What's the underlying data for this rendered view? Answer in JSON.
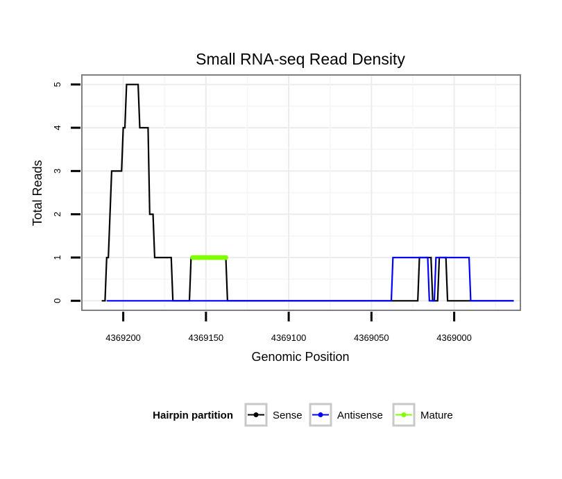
{
  "chart_data": {
    "type": "line",
    "title": "Small RNA-seq Read Density",
    "xlabel": "Genomic Position",
    "ylabel": "Total Reads",
    "xlim": [
      4369225,
      4368960
    ],
    "ylim": [
      -0.22,
      5.22
    ],
    "x_reversed": true,
    "grid": true,
    "x_ticks": [
      4369200,
      4369150,
      4369100,
      4369050,
      4369000
    ],
    "x_tick_labels": [
      "4369200",
      "4369150",
      "4369100",
      "4369050",
      "4369000"
    ],
    "y_ticks": [
      0,
      1,
      2,
      3,
      4,
      5
    ],
    "y_tick_labels": [
      "0",
      "1",
      "2",
      "3",
      "4",
      "5"
    ],
    "legend": {
      "position": "bottom",
      "title": "Hairpin partition",
      "entries": [
        "Sense",
        "Antisense",
        "Mature"
      ]
    },
    "series": [
      {
        "name": "Sense",
        "color": "#000000",
        "style": "line",
        "points": [
          [
            4369213,
            0
          ],
          [
            4369211,
            0
          ],
          [
            4369210,
            1
          ],
          [
            4369209,
            1
          ],
          [
            4369208,
            2
          ],
          [
            4369207,
            3
          ],
          [
            4369201,
            3
          ],
          [
            4369200,
            4
          ],
          [
            4369199,
            4
          ],
          [
            4369198,
            5
          ],
          [
            4369191,
            5
          ],
          [
            4369190,
            4
          ],
          [
            4369185,
            4
          ],
          [
            4369184,
            2
          ],
          [
            4369182,
            2
          ],
          [
            4369181,
            1
          ],
          [
            4369171,
            1
          ],
          [
            4369170,
            0
          ],
          [
            4369160,
            0
          ],
          [
            4369159,
            1
          ],
          [
            4369138,
            1
          ],
          [
            4369137,
            0
          ],
          [
            4369022,
            0
          ],
          [
            4369021,
            1
          ],
          [
            4369014,
            1
          ],
          [
            4369013,
            0
          ],
          [
            4369010,
            0
          ],
          [
            4369009,
            1
          ],
          [
            4369005,
            1
          ],
          [
            4369004,
            0
          ],
          [
            4368964,
            0
          ]
        ]
      },
      {
        "name": "Antisense",
        "color": "#0000ff",
        "style": "line",
        "points": [
          [
            4369210,
            0
          ],
          [
            4369038,
            0
          ],
          [
            4369037,
            1
          ],
          [
            4369016,
            1
          ],
          [
            4369015,
            0
          ],
          [
            4369012,
            0
          ],
          [
            4369011,
            1
          ],
          [
            4368991,
            1
          ],
          [
            4368990,
            0
          ],
          [
            4368964,
            0
          ]
        ]
      },
      {
        "name": "Mature",
        "color": "#7fff00",
        "style": "line+points",
        "points": [
          [
            4369158,
            1
          ],
          [
            4369157,
            1
          ],
          [
            4369156,
            1
          ],
          [
            4369155,
            1
          ],
          [
            4369154,
            1
          ],
          [
            4369153,
            1
          ],
          [
            4369152,
            1
          ],
          [
            4369151,
            1
          ],
          [
            4369150,
            1
          ],
          [
            4369149,
            1
          ],
          [
            4369148,
            1
          ],
          [
            4369147,
            1
          ],
          [
            4369146,
            1
          ],
          [
            4369145,
            1
          ],
          [
            4369144,
            1
          ],
          [
            4369143,
            1
          ],
          [
            4369142,
            1
          ],
          [
            4369141,
            1
          ],
          [
            4369140,
            1
          ],
          [
            4369139,
            1
          ],
          [
            4369138,
            1
          ]
        ]
      }
    ]
  }
}
